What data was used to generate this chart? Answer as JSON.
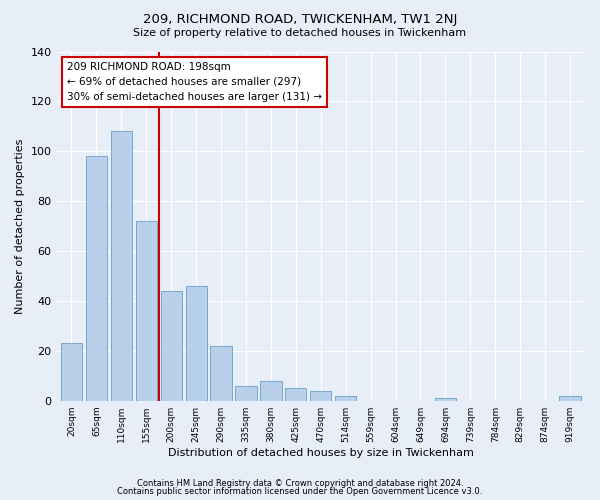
{
  "title1": "209, RICHMOND ROAD, TWICKENHAM, TW1 2NJ",
  "title2": "Size of property relative to detached houses in Twickenham",
  "xlabel": "Distribution of detached houses by size in Twickenham",
  "ylabel": "Number of detached properties",
  "categories": [
    "20sqm",
    "65sqm",
    "110sqm",
    "155sqm",
    "200sqm",
    "245sqm",
    "290sqm",
    "335sqm",
    "380sqm",
    "425sqm",
    "470sqm",
    "514sqm",
    "559sqm",
    "604sqm",
    "649sqm",
    "694sqm",
    "739sqm",
    "784sqm",
    "829sqm",
    "874sqm",
    "919sqm"
  ],
  "values": [
    23,
    98,
    108,
    72,
    44,
    46,
    22,
    6,
    8,
    5,
    4,
    2,
    0,
    0,
    0,
    1,
    0,
    0,
    0,
    0,
    2
  ],
  "bar_color": "#b8d0ea",
  "bar_edge_color": "#6a9fc8",
  "bg_color": "#e8eef8",
  "vline_color": "#cc0000",
  "annotation_text": "209 RICHMOND ROAD: 198sqm\n← 69% of detached houses are smaller (297)\n30% of semi-detached houses are larger (131) →",
  "annotation_box_color": "#ffffff",
  "annotation_box_edge": "#cc0000",
  "footer1": "Contains HM Land Registry data © Crown copyright and database right 2024.",
  "footer2": "Contains public sector information licensed under the Open Government Licence v3.0.",
  "ylim": [
    0,
    140
  ],
  "yticks": [
    0,
    20,
    40,
    60,
    80,
    100,
    120,
    140
  ]
}
